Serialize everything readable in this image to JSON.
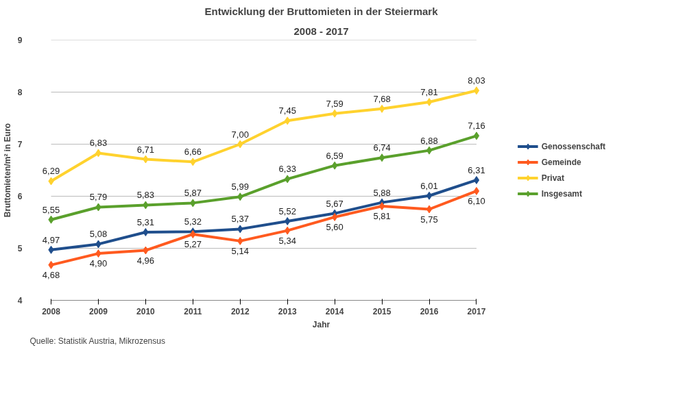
{
  "chart_data": {
    "type": "line",
    "title": "Entwicklung der Bruttomieten in der Steiermark",
    "subtitle": "2008 - 2017",
    "xlabel": "Jahr",
    "ylabel": "Bruttomieten/m² in Euro",
    "x": [
      2008,
      2009,
      2010,
      2011,
      2012,
      2013,
      2014,
      2015,
      2016,
      2017
    ],
    "xlim": [
      2008,
      2017
    ],
    "xticks": [
      2008,
      2009,
      2010,
      2011,
      2012,
      2013,
      2014,
      2015,
      2016,
      2017
    ],
    "ylim": [
      4,
      9
    ],
    "yticks": [
      4,
      5,
      6,
      7,
      8,
      9
    ],
    "grid": "y",
    "legend": "right",
    "marker": "diamond",
    "line_style": "solid",
    "series": [
      {
        "name": "Genossenschaft",
        "color": "#1f4e8c",
        "values": [
          4.97,
          5.08,
          5.31,
          5.32,
          5.37,
          5.52,
          5.67,
          5.88,
          6.01,
          6.31
        ],
        "value_labels": [
          "4,97",
          "5,08",
          "5,31",
          "5,32",
          "5,37",
          "5,52",
          "5,67",
          "5,88",
          "6,01",
          "6,31"
        ]
      },
      {
        "name": "Gemeinde",
        "color": "#ff5a1f",
        "values": [
          4.68,
          4.9,
          4.96,
          5.27,
          5.14,
          5.34,
          5.6,
          5.81,
          5.75,
          6.1
        ],
        "value_labels": [
          "4,68",
          "4,90",
          "4,96",
          "5,27",
          "5,14",
          "5,34",
          "5,60",
          "5,81",
          "5,75",
          "6,10"
        ]
      },
      {
        "name": "Privat",
        "color": "#ffd22e",
        "values": [
          6.29,
          6.83,
          6.71,
          6.66,
          7.0,
          7.45,
          7.59,
          7.68,
          7.81,
          8.03
        ],
        "value_labels": [
          "6,29",
          "6,83",
          "6,71",
          "6,66",
          "7,00",
          "7,45",
          "7,59",
          "7,68",
          "7,81",
          "8,03"
        ]
      },
      {
        "name": "Insgesamt",
        "color": "#5aa02c",
        "values": [
          5.55,
          5.79,
          5.83,
          5.87,
          5.99,
          6.33,
          6.59,
          6.74,
          6.88,
          7.16
        ],
        "value_labels": [
          "5,55",
          "5,79",
          "5,83",
          "5,87",
          "5,99",
          "6,33",
          "6,59",
          "6,74",
          "6,88",
          "7,16"
        ]
      }
    ],
    "annotations": [
      "Quelle: Statistik Austria, Mikrozensus"
    ]
  }
}
